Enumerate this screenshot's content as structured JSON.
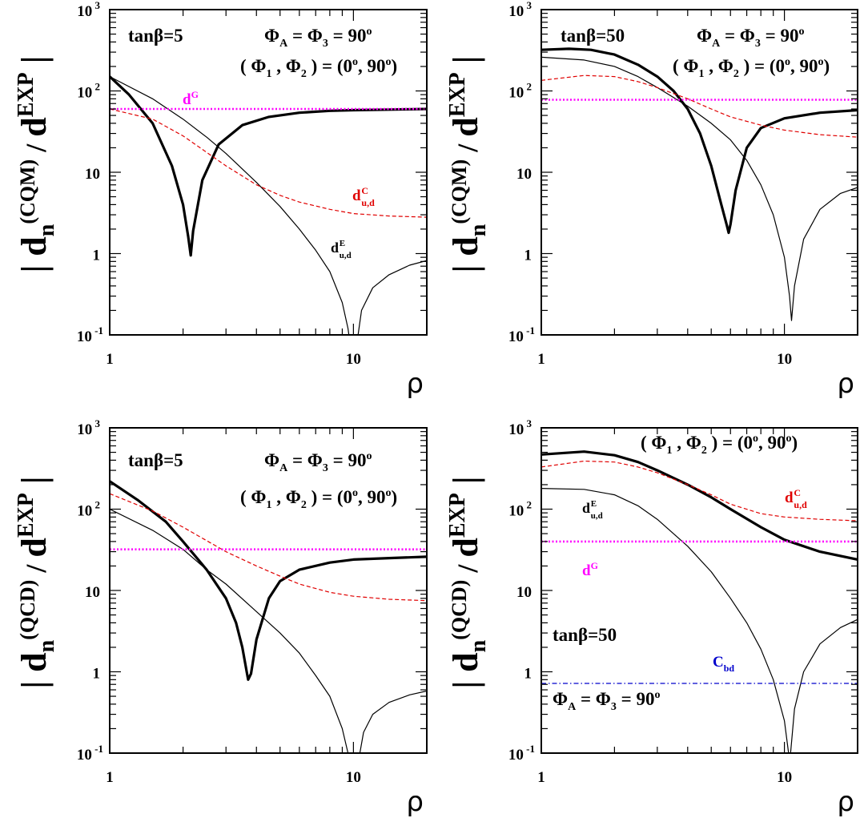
{
  "figure": {
    "colors": {
      "total": "#000000",
      "edm": "#000000",
      "cedm": "#e00000",
      "weinberg": "#ff00ff",
      "cbd": "#0000cc"
    },
    "y_exp_label": "-1"
  },
  "chart_data": [
    {
      "type": "line",
      "panel": "top-left",
      "xlabel": "ρ",
      "ylabel": {
        "d": "d",
        "sub": "n",
        "mid": "(CQM)",
        "slash": "/",
        "d2": "d",
        "sup": "EXP"
      },
      "xscale": "log",
      "yscale": "log",
      "xlim": [
        1,
        20
      ],
      "ylim": [
        0.1,
        1000
      ],
      "xticks": [
        {
          "value": 1,
          "label": "1"
        },
        {
          "value": 10,
          "label": "10"
        }
      ],
      "yticks": [
        {
          "value": 0.1,
          "base": "10",
          "exp": "-1"
        },
        {
          "value": 1,
          "base": "1",
          "exp": ""
        },
        {
          "value": 10,
          "base": "10",
          "exp": ""
        },
        {
          "value": 100,
          "base": "10",
          "exp": "2"
        },
        {
          "value": 1000,
          "base": "10",
          "exp": "3"
        }
      ],
      "annotations": [
        {
          "id": "tanb",
          "text": "tanβ=5",
          "color": "#000000"
        },
        {
          "id": "phiA",
          "text": "Φ",
          "sub": "A",
          "mid": " = Φ",
          "sub2": "3",
          "end": " = 90",
          "sup": "o",
          "color": "#000000"
        },
        {
          "id": "phi12",
          "text": "( Φ",
          "sub": "1",
          "mid": " , Φ",
          "sub2": "2",
          "end": " ) = (0",
          "sup": "o",
          "end2": ", 90",
          "sup2": "o",
          "end3": ")",
          "color": "#000000"
        },
        {
          "id": "dG",
          "text": "d",
          "sup": "G",
          "color": "#ff00ff"
        },
        {
          "id": "dC",
          "text": "d",
          "sup": "C",
          "sub": "u,d",
          "color": "#e00000"
        },
        {
          "id": "dE",
          "text": "d",
          "sup": "E",
          "sub": "u,d",
          "color": "#000000"
        }
      ],
      "series": [
        {
          "key": "total",
          "style": "thick",
          "x": [
            1,
            1.2,
            1.5,
            1.8,
            2.0,
            2.1,
            2.15,
            2.2,
            2.4,
            2.8,
            3.5,
            4.5,
            6,
            8,
            10,
            14,
            20
          ],
          "y": [
            150,
            90,
            40,
            12,
            4,
            1.6,
            0.95,
            1.9,
            8,
            22,
            38,
            48,
            54,
            57,
            58,
            59,
            60
          ]
        },
        {
          "key": "edm",
          "style": "thin",
          "x": [
            1,
            1.5,
            2,
            2.5,
            3,
            4,
            5,
            6,
            7,
            8,
            9,
            9.5,
            9.8,
            10.2,
            10.8,
            12,
            14,
            17,
            20
          ],
          "y": [
            150,
            80,
            45,
            27,
            17,
            7.5,
            3.8,
            2,
            1.1,
            0.6,
            0.25,
            0.12,
            0.06,
            0.06,
            0.2,
            0.38,
            0.55,
            0.72,
            0.82
          ]
        },
        {
          "key": "cedm",
          "style": "dashed",
          "x": [
            1,
            1.5,
            2,
            3,
            4,
            5,
            6,
            8,
            10,
            14,
            20
          ],
          "y": [
            60,
            45,
            28,
            12,
            7,
            5.2,
            4.3,
            3.5,
            3.1,
            2.9,
            2.8
          ]
        },
        {
          "key": "weinberg",
          "style": "dotted",
          "x": [
            1,
            20
          ],
          "y": [
            60,
            60
          ]
        }
      ]
    },
    {
      "type": "line",
      "panel": "top-right",
      "xlabel": "ρ",
      "ylabel": {
        "d": "d",
        "sub": "n",
        "mid": "(CQM)",
        "slash": "/",
        "d2": "d",
        "sup": "EXP"
      },
      "xscale": "log",
      "yscale": "log",
      "xlim": [
        1,
        20
      ],
      "ylim": [
        0.1,
        1000
      ],
      "xticks": [
        {
          "value": 1,
          "label": "1"
        },
        {
          "value": 10,
          "label": "10"
        }
      ],
      "yticks": [
        {
          "value": 0.1,
          "base": "10",
          "exp": "-1"
        },
        {
          "value": 1,
          "base": "1",
          "exp": ""
        },
        {
          "value": 10,
          "base": "10",
          "exp": ""
        },
        {
          "value": 100,
          "base": "10",
          "exp": "2"
        },
        {
          "value": 1000,
          "base": "10",
          "exp": "3"
        }
      ],
      "annotations": [
        {
          "id": "tanb",
          "text": "tanβ=50",
          "color": "#000000"
        },
        {
          "id": "phiA",
          "text": "Φ",
          "sub": "A",
          "mid": " = Φ",
          "sub2": "3",
          "end": " = 90",
          "sup": "o",
          "color": "#000000"
        },
        {
          "id": "phi12",
          "text": "( Φ",
          "sub": "1",
          "mid": " , Φ",
          "sub2": "2",
          "end": " ) = (0",
          "sup": "o",
          "end2": ", 90",
          "sup2": "o",
          "end3": ")",
          "color": "#000000"
        }
      ],
      "series": [
        {
          "key": "total",
          "style": "thick",
          "x": [
            1,
            1.3,
            1.6,
            2,
            2.5,
            3,
            3.5,
            4,
            4.5,
            5,
            5.5,
            5.8,
            5.9,
            6.0,
            6.3,
            7,
            8,
            10,
            14,
            20
          ],
          "y": [
            320,
            330,
            320,
            280,
            210,
            150,
            100,
            60,
            30,
            12,
            4,
            2.2,
            1.8,
            2.3,
            6,
            20,
            35,
            46,
            54,
            58
          ]
        },
        {
          "key": "edm",
          "style": "thin",
          "x": [
            1,
            1.5,
            2,
            2.5,
            3,
            4,
            5,
            6,
            7,
            8,
            9,
            10,
            10.5,
            10.7,
            11,
            12,
            14,
            17,
            20
          ],
          "y": [
            260,
            240,
            200,
            150,
            110,
            65,
            40,
            25,
            14,
            7,
            3,
            0.9,
            0.3,
            0.15,
            0.4,
            1.5,
            3.5,
            5.5,
            6.5
          ]
        },
        {
          "key": "cedm",
          "style": "dashed",
          "x": [
            1,
            1.5,
            2,
            2.5,
            3,
            4,
            5,
            6,
            8,
            10,
            14,
            20
          ],
          "y": [
            135,
            155,
            150,
            130,
            110,
            80,
            60,
            48,
            38,
            33,
            29,
            27
          ]
        },
        {
          "key": "weinberg",
          "style": "dotted",
          "x": [
            1,
            20
          ],
          "y": [
            78,
            78
          ]
        }
      ]
    },
    {
      "type": "line",
      "panel": "bottom-left",
      "xlabel": "ρ",
      "ylabel": {
        "d": "d",
        "sub": "n",
        "mid": "(QCD)",
        "slash": "/",
        "d2": "d",
        "sup": "EXP"
      },
      "xscale": "log",
      "yscale": "log",
      "xlim": [
        1,
        20
      ],
      "ylim": [
        0.1,
        1000
      ],
      "xticks": [
        {
          "value": 1,
          "label": "1"
        },
        {
          "value": 10,
          "label": "10"
        }
      ],
      "yticks": [
        {
          "value": 0.1,
          "base": "10",
          "exp": "-1"
        },
        {
          "value": 1,
          "base": "1",
          "exp": ""
        },
        {
          "value": 10,
          "base": "10",
          "exp": ""
        },
        {
          "value": 100,
          "base": "10",
          "exp": "2"
        },
        {
          "value": 1000,
          "base": "10",
          "exp": "3"
        }
      ],
      "annotations": [
        {
          "id": "tanb",
          "text": "tanβ=5",
          "color": "#000000"
        },
        {
          "id": "phiA",
          "text": "Φ",
          "sub": "A",
          "mid": " = Φ",
          "sub2": "3",
          "end": " = 90",
          "sup": "o",
          "color": "#000000"
        },
        {
          "id": "phi12",
          "text": "( Φ",
          "sub": "1",
          "mid": " , Φ",
          "sub2": "2",
          "end": " ) = (0",
          "sup": "o",
          "end2": ", 90",
          "sup2": "o",
          "end3": ")",
          "color": "#000000"
        }
      ],
      "series": [
        {
          "key": "total",
          "style": "thick",
          "x": [
            1,
            1.3,
            1.7,
            2,
            2.5,
            3,
            3.3,
            3.5,
            3.65,
            3.7,
            3.8,
            4,
            4.5,
            5,
            6,
            8,
            10,
            14,
            20
          ],
          "y": [
            220,
            130,
            70,
            40,
            18,
            8,
            4,
            2,
            1,
            0.8,
            0.95,
            2.5,
            8,
            13,
            18,
            22,
            24,
            25,
            26
          ]
        },
        {
          "key": "edm",
          "style": "thin",
          "x": [
            1,
            1.5,
            2,
            2.5,
            3,
            4,
            5,
            6,
            7,
            8,
            9,
            9.5,
            9.8,
            10.2,
            11,
            12,
            14,
            17,
            20
          ],
          "y": [
            100,
            55,
            32,
            18,
            12,
            5.5,
            3,
            1.7,
            0.9,
            0.5,
            0.2,
            0.1,
            0.05,
            0.05,
            0.18,
            0.3,
            0.42,
            0.52,
            0.58
          ]
        },
        {
          "key": "cedm",
          "style": "dashed",
          "x": [
            1,
            1.5,
            2,
            3,
            4,
            5,
            6,
            8,
            10,
            14,
            20
          ],
          "y": [
            155,
            95,
            60,
            30,
            20,
            15,
            12,
            9.5,
            8.5,
            7.8,
            7.5
          ]
        },
        {
          "key": "weinberg",
          "style": "dotted",
          "x": [
            1,
            20
          ],
          "y": [
            32,
            32
          ]
        }
      ]
    },
    {
      "type": "line",
      "panel": "bottom-right",
      "xlabel": "ρ",
      "ylabel": {
        "d": "d",
        "sub": "n",
        "mid": "(QCD)",
        "slash": "/",
        "d2": "d",
        "sup": "EXP"
      },
      "xscale": "log",
      "yscale": "log",
      "xlim": [
        1,
        20
      ],
      "ylim": [
        0.1,
        1000
      ],
      "xticks": [
        {
          "value": 1,
          "label": "1"
        },
        {
          "value": 10,
          "label": "10"
        }
      ],
      "yticks": [
        {
          "value": 0.1,
          "base": "10",
          "exp": "-1"
        },
        {
          "value": 1,
          "base": "1",
          "exp": ""
        },
        {
          "value": 10,
          "base": "10",
          "exp": ""
        },
        {
          "value": 100,
          "base": "10",
          "exp": "2"
        },
        {
          "value": 1000,
          "base": "10",
          "exp": "3"
        }
      ],
      "annotations": [
        {
          "id": "phi12",
          "text": "( Φ",
          "sub": "1",
          "mid": " , Φ",
          "sub2": "2",
          "end": " ) = (0",
          "sup": "o",
          "end2": ", 90",
          "sup2": "o",
          "end3": ")",
          "color": "#000000"
        },
        {
          "id": "dC",
          "text": "d",
          "sup": "C",
          "sub": "u,d",
          "color": "#e00000"
        },
        {
          "id": "dE",
          "text": "d",
          "sup": "E",
          "sub": "u,d",
          "color": "#000000"
        },
        {
          "id": "dG",
          "text": "d",
          "sup": "G",
          "color": "#ff00ff"
        },
        {
          "id": "tanb",
          "text": "tanβ=50",
          "color": "#000000"
        },
        {
          "id": "cbd",
          "text": "C",
          "sub": "bd",
          "color": "#0000cc"
        },
        {
          "id": "phiA",
          "text": "Φ",
          "sub": "A",
          "mid": " = Φ",
          "sub2": "3",
          "end": " = 90",
          "sup": "o",
          "color": "#000000"
        }
      ],
      "series": [
        {
          "key": "total",
          "style": "thick",
          "x": [
            1,
            1.5,
            2,
            2.5,
            3,
            4,
            5,
            6,
            8,
            10,
            14,
            20
          ],
          "y": [
            470,
            510,
            460,
            380,
            300,
            200,
            140,
            100,
            60,
            42,
            30,
            24
          ]
        },
        {
          "key": "edm",
          "style": "thin",
          "x": [
            1,
            1.5,
            2,
            2.5,
            3,
            4,
            5,
            6,
            7,
            8,
            9,
            10,
            10.4,
            10.6,
            11,
            12,
            14,
            17,
            20
          ],
          "y": [
            180,
            175,
            150,
            110,
            75,
            35,
            17,
            8,
            4,
            1.9,
            0.8,
            0.25,
            0.1,
            0.1,
            0.35,
            1,
            2.2,
            3.5,
            4.4
          ]
        },
        {
          "key": "cedm",
          "style": "dashed",
          "x": [
            1,
            1.5,
            2,
            2.5,
            3,
            4,
            5,
            6,
            8,
            10,
            14,
            20
          ],
          "y": [
            330,
            390,
            380,
            330,
            280,
            200,
            150,
            115,
            88,
            80,
            75,
            72
          ]
        },
        {
          "key": "weinberg",
          "style": "dotted",
          "x": [
            1,
            20
          ],
          "y": [
            40,
            40
          ]
        },
        {
          "key": "cbd",
          "style": "dashdot",
          "x": [
            1,
            20
          ],
          "y": [
            0.72,
            0.72
          ]
        }
      ]
    }
  ]
}
